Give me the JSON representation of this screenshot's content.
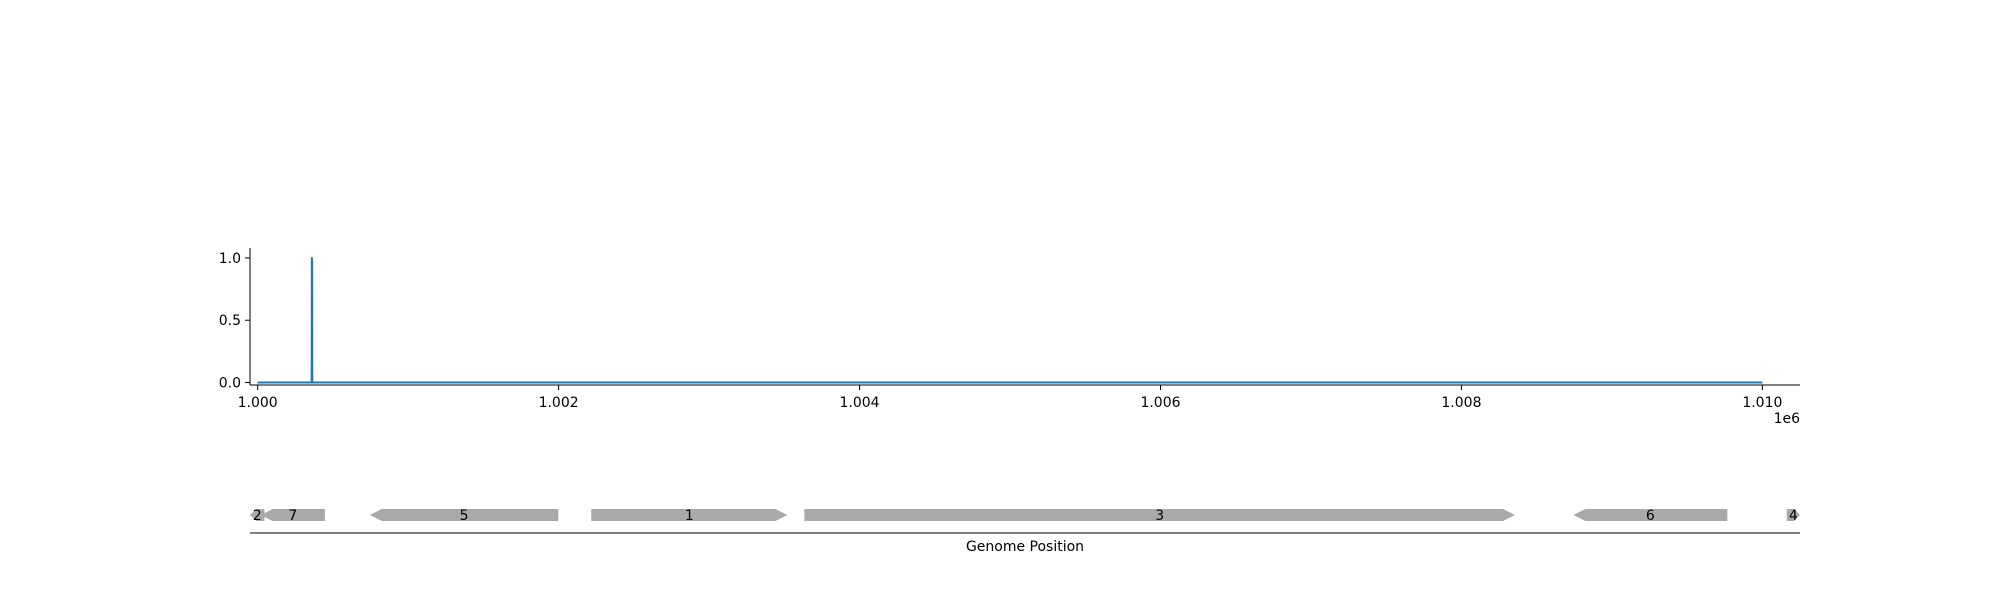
{
  "chart_data": [
    {
      "type": "line",
      "title": "",
      "xlabel": "",
      "ylabel": "",
      "x_offset_label": "1e6",
      "xlim": [
        0.999949,
        1.01025
      ],
      "ylim": [
        -0.02,
        1.08
      ],
      "x_ticks": [
        1.0,
        1.002,
        1.004,
        1.006,
        1.008,
        1.01
      ],
      "x_tick_labels": [
        "1.000",
        "1.002",
        "1.004",
        "1.006",
        "1.008",
        "1.010"
      ],
      "y_ticks": [
        0.0,
        0.5,
        1.0
      ],
      "y_tick_labels": [
        "0.0",
        "0.5",
        "1.0"
      ],
      "grid": false,
      "series": [
        {
          "color": "#1f77b4",
          "x": [
            1.0,
            1.000359,
            1.00036,
            1.000362,
            1.000363,
            1.01
          ],
          "y": [
            0.0,
            0.0,
            1.0,
            0.95,
            0.0,
            0.0
          ]
        }
      ]
    },
    {
      "type": "gene-track",
      "xlabel": "Genome Position",
      "xlim": [
        0.999949,
        1.01025
      ],
      "feature_color": "#a9a9a9",
      "features": [
        {
          "label": "2",
          "start": 0.999949,
          "end": 1.000045,
          "strand": "-"
        },
        {
          "label": "7",
          "start": 1.00002,
          "end": 1.000447,
          "strand": "-"
        },
        {
          "label": "5",
          "start": 1.000745,
          "end": 1.001998,
          "strand": "-"
        },
        {
          "label": "1",
          "start": 1.002217,
          "end": 1.00352,
          "strand": "+"
        },
        {
          "label": "3",
          "start": 1.003633,
          "end": 1.008356,
          "strand": "+"
        },
        {
          "label": "6",
          "start": 1.008744,
          "end": 1.009767,
          "strand": "-"
        },
        {
          "label": "4",
          "start": 1.010162,
          "end": 1.01025,
          "strand": "+"
        }
      ]
    }
  ]
}
